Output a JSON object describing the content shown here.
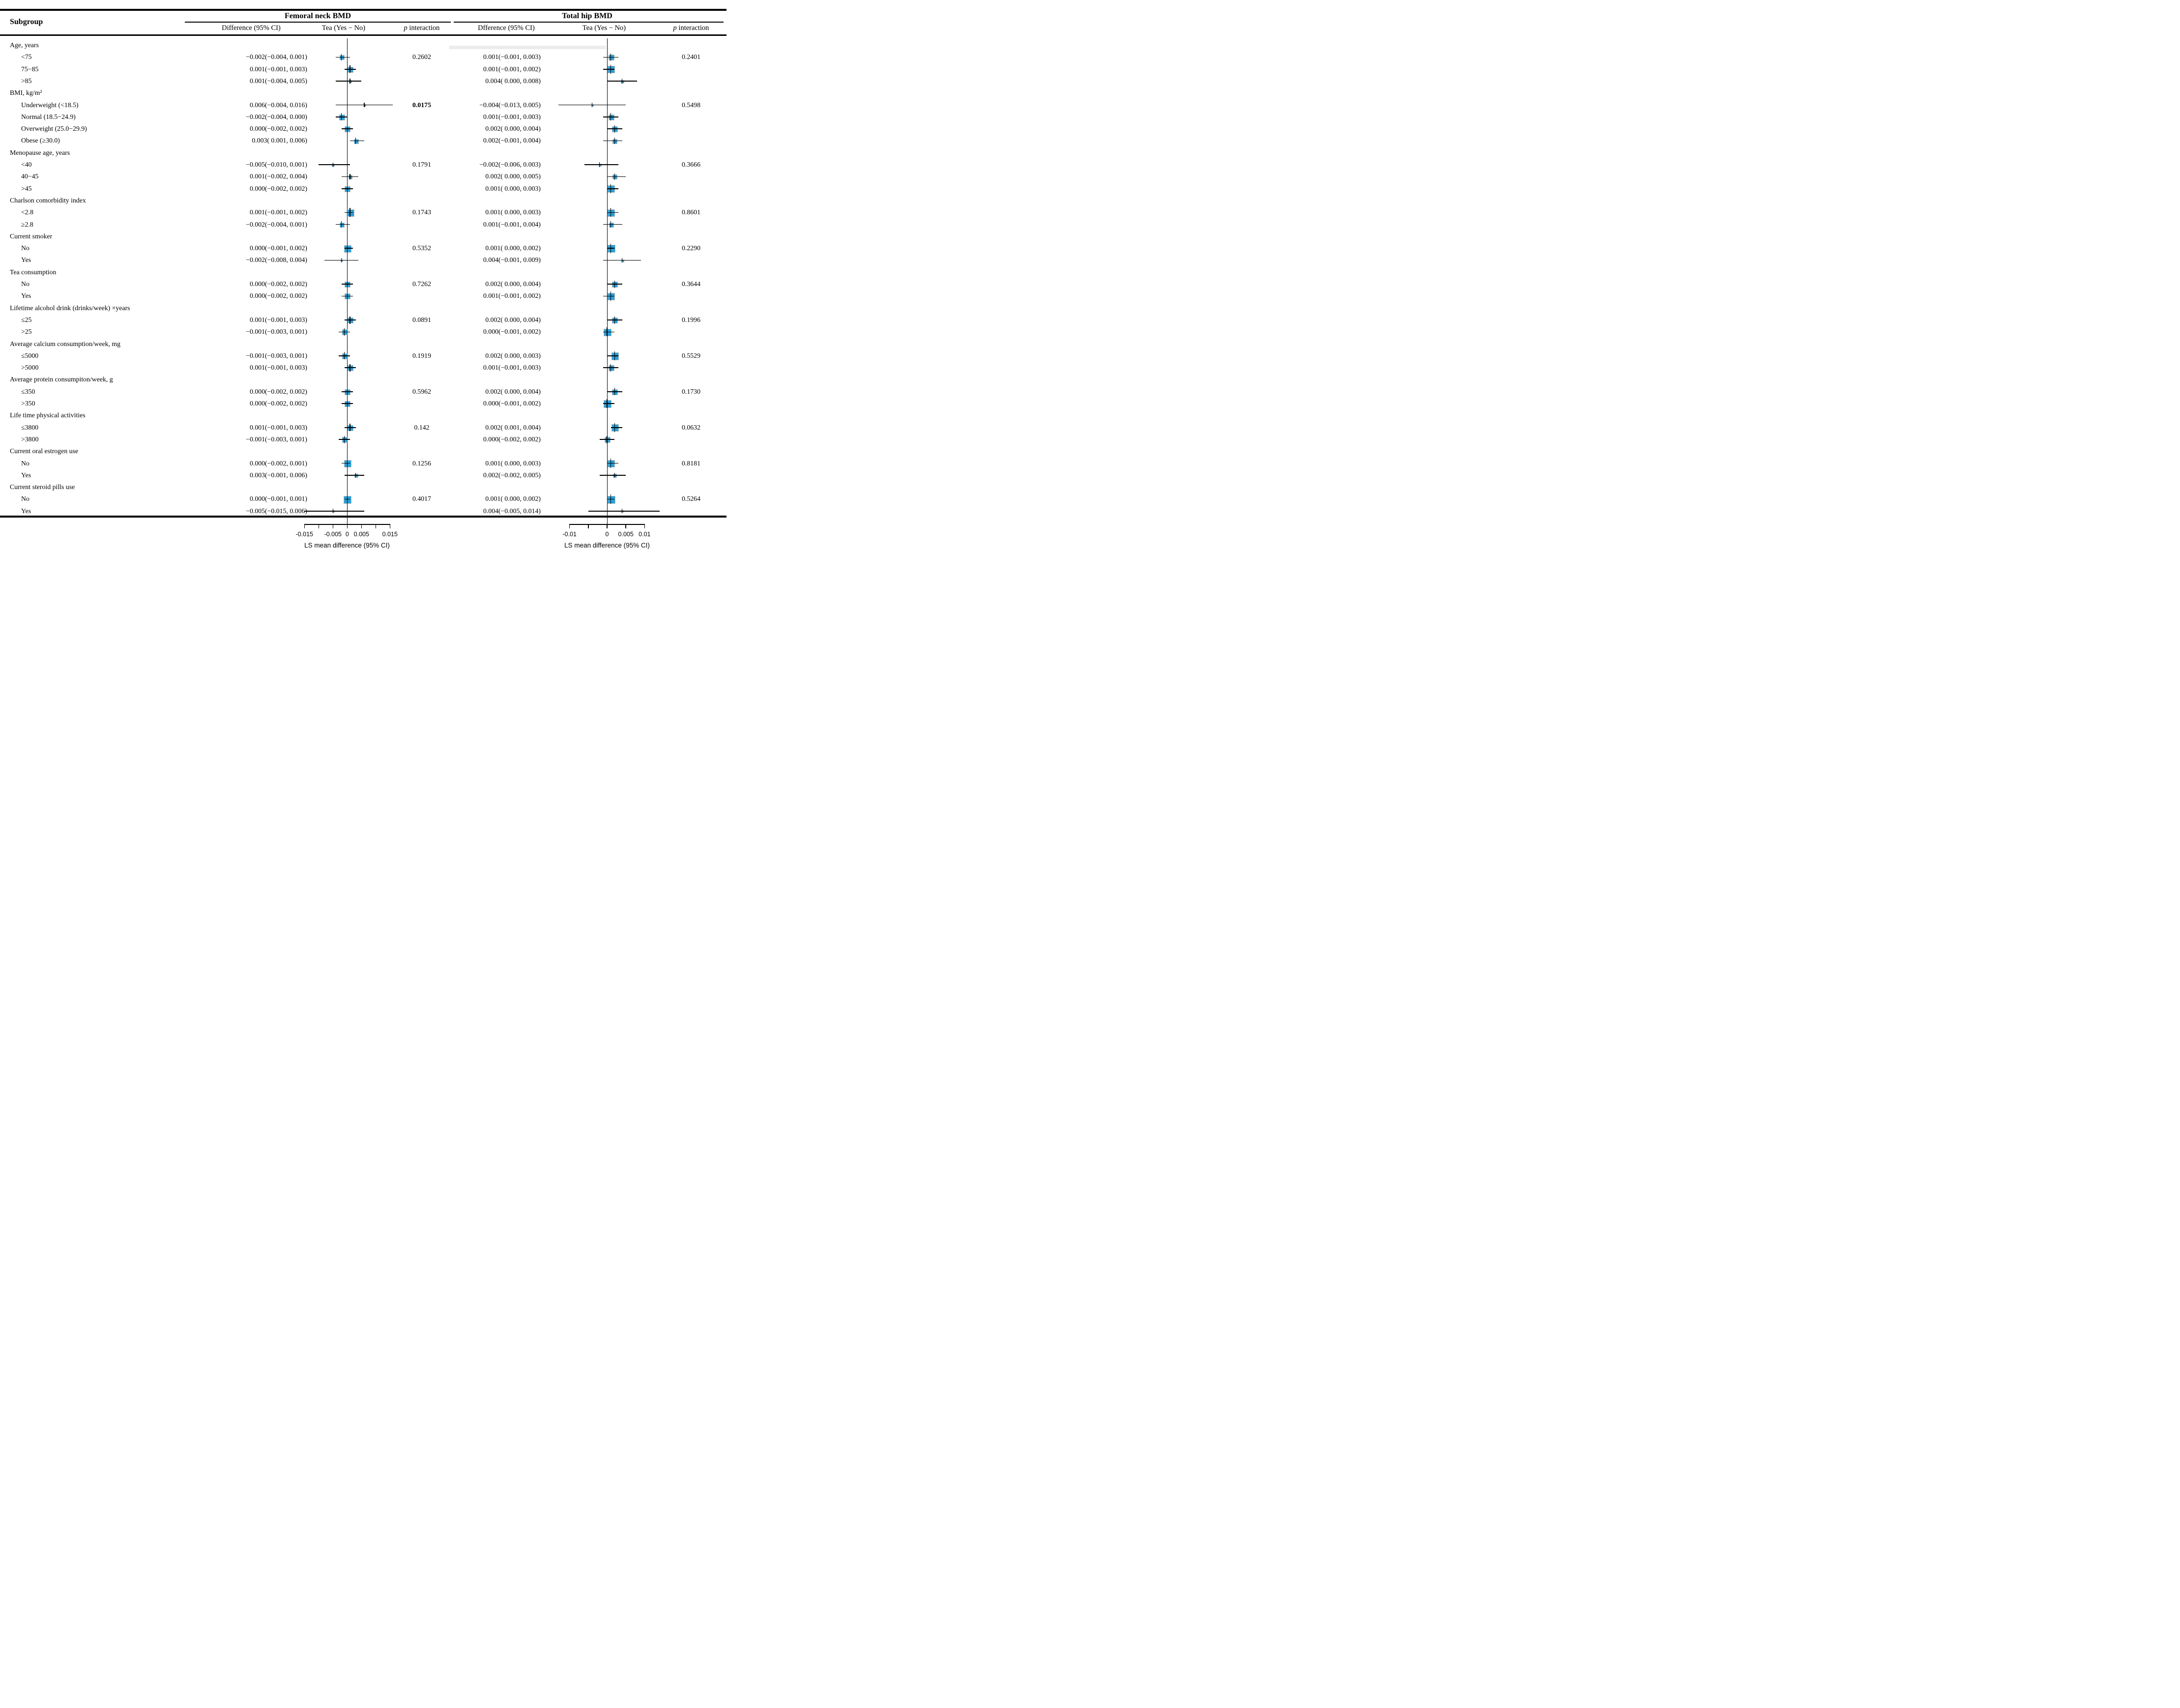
{
  "page": {
    "subgroup_header": "Subgroup"
  },
  "panels": {
    "fn": {
      "title": "Femoral neck BMD",
      "diff_header": "Difference (95% CI)",
      "tea_header": "Tea (Yes − No)",
      "p_header_italic": "p",
      "p_header_rest": " interaction",
      "axis": {
        "tick_labels": [
          "-0.015",
          "-0.005",
          "0",
          "0.005",
          "0.015"
        ],
        "title": "LS mean difference (95% CI)"
      }
    },
    "th": {
      "title": "Total hip BMD",
      "diff_header": "Dfference (95% CI)",
      "tea_header": "Tea (Yes − No)",
      "p_header_italic": "p",
      "p_header_rest": " interaction",
      "axis": {
        "tick_labels": [
          "-0.01",
          "0",
          "0.005",
          "0.01"
        ],
        "title": "LS mean difference (95% CI)"
      }
    }
  },
  "chart_data": {
    "type": "scatter",
    "subtype": "forest-plot",
    "legend_position": "none",
    "grid": false,
    "marker_color": "#2a9fd8",
    "fn_axis": {
      "range": [
        -0.015,
        0.015
      ],
      "tick_step": 0.005,
      "label": "LS mean difference (95% CI)"
    },
    "th_axis": {
      "range": [
        -0.01,
        0.01
      ],
      "tick_step": 0.005,
      "label": "LS mean difference (95% CI)"
    },
    "sections": [
      {
        "label": "Age, years",
        "items": [
          {
            "label": "<75",
            "fn_text": "−0.002(−0.004, 0.001)",
            "fn": [
              -0.002,
              -0.004,
              0.001
            ],
            "fn_p": "0.2602",
            "th_text": "0.001(−0.001, 0.003)",
            "th": [
              0.001,
              -0.001,
              0.003
            ],
            "th_p": "0.2401"
          },
          {
            "label": "75−85",
            "fn_text": "0.001(−0.001, 0.003)",
            "fn": [
              0.001,
              -0.001,
              0.003
            ],
            "th_text": "0.001(−0.001, 0.002)",
            "th": [
              0.001,
              -0.001,
              0.002
            ]
          },
          {
            "label": ">85",
            "fn_text": "0.001(−0.004, 0.005)",
            "fn": [
              0.001,
              -0.004,
              0.005
            ],
            "th_text": "0.004( 0.000, 0.008)",
            "th": [
              0.004,
              0.0,
              0.008
            ]
          }
        ]
      },
      {
        "label": "BMI, kg/m²",
        "items": [
          {
            "label": "Underweight (<18.5)",
            "fn_text": "0.006(−0.004, 0.016)",
            "fn": [
              0.006,
              -0.004,
              0.016
            ],
            "fn_p": "0.0175",
            "fn_p_bold": true,
            "th_text": "−0.004(−0.013, 0.005)",
            "th": [
              -0.004,
              -0.013,
              0.005
            ],
            "th_p": "0.5498"
          },
          {
            "label": "Normal (18.5−24.9)",
            "fn_text": "−0.002(−0.004, 0.000)",
            "fn": [
              -0.002,
              -0.004,
              0.0
            ],
            "th_text": "0.001(−0.001, 0.003)",
            "th": [
              0.001,
              -0.001,
              0.003
            ]
          },
          {
            "label": "Overweight (25.0−29.9)",
            "fn_text": "0.000(−0.002, 0.002)",
            "fn": [
              0.0,
              -0.002,
              0.002
            ],
            "th_text": "0.002( 0.000, 0.004)",
            "th": [
              0.002,
              0.0,
              0.004
            ]
          },
          {
            "label": "Obese (≥30.0)",
            "fn_text": "0.003( 0.001, 0.006)",
            "fn": [
              0.003,
              0.001,
              0.006
            ],
            "th_text": "0.002(−0.001, 0.004)",
            "th": [
              0.002,
              -0.001,
              0.004
            ]
          }
        ]
      },
      {
        "label": "Menopause age, years",
        "items": [
          {
            "label": "<40",
            "fn_text": "−0.005(−0.010, 0.001)",
            "fn": [
              -0.005,
              -0.01,
              0.001
            ],
            "fn_p": "0.1791",
            "th_text": "−0.002(−0.006, 0.003)",
            "th": [
              -0.002,
              -0.006,
              0.003
            ],
            "th_p": "0.3666"
          },
          {
            "label": "40−45",
            "fn_text": "0.001(−0.002, 0.004)",
            "fn": [
              0.001,
              -0.002,
              0.004
            ],
            "th_text": "0.002( 0.000, 0.005)",
            "th": [
              0.002,
              0.0,
              0.005
            ]
          },
          {
            "label": ">45",
            "fn_text": "0.000(−0.002, 0.002)",
            "fn": [
              0.0,
              -0.002,
              0.002
            ],
            "th_text": "0.001( 0.000, 0.003)",
            "th": [
              0.001,
              0.0,
              0.003
            ]
          }
        ]
      },
      {
        "label": "Charlson comorbidity index",
        "items": [
          {
            "label": "<2.8",
            "fn_text": "0.001(−0.001, 0.002)",
            "fn": [
              0.001,
              -0.001,
              0.002
            ],
            "fn_p": "0.1743",
            "th_text": "0.001( 0.000, 0.003)",
            "th": [
              0.001,
              0.0,
              0.003
            ],
            "th_p": "0.8601"
          },
          {
            "label": "≥2.8",
            "fn_text": "−0.002(−0.004, 0.001)",
            "fn": [
              -0.002,
              -0.004,
              0.001
            ],
            "th_text": "0.001(−0.001, 0.004)",
            "th": [
              0.001,
              -0.001,
              0.004
            ]
          }
        ]
      },
      {
        "label": "Current smoker",
        "items": [
          {
            "label": "No",
            "fn_text": "0.000(−0.001, 0.002)",
            "fn": [
              0.0,
              -0.001,
              0.002
            ],
            "fn_p": "0.5352",
            "th_text": "0.001( 0.000, 0.002)",
            "th": [
              0.001,
              0.0,
              0.002
            ],
            "th_p": "0.2290"
          },
          {
            "label": "Yes",
            "fn_text": "−0.002(−0.008, 0.004)",
            "fn": [
              -0.002,
              -0.008,
              0.004
            ],
            "th_text": "0.004(−0.001, 0.009)",
            "th": [
              0.004,
              -0.001,
              0.009
            ]
          }
        ]
      },
      {
        "label": "Tea consumption",
        "items": [
          {
            "label": "No",
            "fn_text": "0.000(−0.002, 0.002)",
            "fn": [
              0.0,
              -0.002,
              0.002
            ],
            "fn_p": "0.7262",
            "th_text": "0.002( 0.000, 0.004)",
            "th": [
              0.002,
              0.0,
              0.004
            ],
            "th_p": "0.3644"
          },
          {
            "label": "Yes",
            "fn_text": "0.000(−0.002, 0.002)",
            "fn": [
              0.0,
              -0.002,
              0.002
            ],
            "th_text": "0.001(−0.001, 0.002)",
            "th": [
              0.001,
              -0.001,
              0.002
            ]
          }
        ]
      },
      {
        "label": "Lifetime alcohol drink (drinks/week) ×years",
        "items": [
          {
            "label": "≤25",
            "fn_text": "0.001(−0.001, 0.003)",
            "fn": [
              0.001,
              -0.001,
              0.003
            ],
            "fn_p": "0.0891",
            "th_text": "0.002( 0.000, 0.004)",
            "th": [
              0.002,
              0.0,
              0.004
            ],
            "th_p": "0.1996"
          },
          {
            "label": ">25",
            "fn_text": "−0.001(−0.003, 0.001)",
            "fn": [
              -0.001,
              -0.003,
              0.001
            ],
            "th_text": "0.000(−0.001, 0.002)",
            "th": [
              0.0,
              -0.001,
              0.002
            ]
          }
        ]
      },
      {
        "label": "Average calcium consumption/week, mg",
        "items": [
          {
            "label": "≤5000",
            "fn_text": "−0.001(−0.003, 0.001)",
            "fn": [
              -0.001,
              -0.003,
              0.001
            ],
            "fn_p": "0.1919",
            "th_text": "0.002( 0.000, 0.003)",
            "th": [
              0.002,
              0.0,
              0.003
            ],
            "th_p": "0.5529"
          },
          {
            "label": ">5000",
            "fn_text": "0.001(−0.001, 0.003)",
            "fn": [
              0.001,
              -0.001,
              0.003
            ],
            "th_text": "0.001(−0.001, 0.003)",
            "th": [
              0.001,
              -0.001,
              0.003
            ]
          }
        ]
      },
      {
        "label": "Average protein consumpiton/week, g",
        "items": [
          {
            "label": "≤350",
            "fn_text": "0.000(−0.002, 0.002)",
            "fn": [
              0.0,
              -0.002,
              0.002
            ],
            "fn_p": "0.5962",
            "th_text": "0.002( 0.000, 0.004)",
            "th": [
              0.002,
              0.0,
              0.004
            ],
            "th_p": "0.1730"
          },
          {
            "label": ">350",
            "fn_text": "0.000(−0.002, 0.002)",
            "fn": [
              0.0,
              -0.002,
              0.002
            ],
            "th_text": "0.000(−0.001, 0.002)",
            "th": [
              0.0,
              -0.001,
              0.002
            ]
          }
        ]
      },
      {
        "label": "Life time physical activities",
        "items": [
          {
            "label": "≤3800",
            "fn_text": "0.001(−0.001, 0.003)",
            "fn": [
              0.001,
              -0.001,
              0.003
            ],
            "fn_p": "0.142",
            "th_text": "0.002( 0.001, 0.004)",
            "th": [
              0.002,
              0.001,
              0.004
            ],
            "th_p": "0.0632"
          },
          {
            "label": ">3800",
            "fn_text": "−0.001(−0.003, 0.001)",
            "fn": [
              -0.001,
              -0.003,
              0.001
            ],
            "th_text": "0.000(−0.002, 0.002)",
            "th": [
              0.0,
              -0.002,
              0.002
            ]
          }
        ]
      },
      {
        "label": "Current oral estrogen use",
        "items": [
          {
            "label": "No",
            "fn_text": "0.000(−0.002, 0.001)",
            "fn": [
              0.0,
              -0.002,
              0.001
            ],
            "fn_p": "0.1256",
            "th_text": "0.001( 0.000, 0.003)",
            "th": [
              0.001,
              0.0,
              0.003
            ],
            "th_p": "0.8181"
          },
          {
            "label": "Yes",
            "fn_text": "0.003(−0.001, 0.006)",
            "fn": [
              0.003,
              -0.001,
              0.006
            ],
            "th_text": "0.002(−0.002, 0.005)",
            "th": [
              0.002,
              -0.002,
              0.005
            ]
          }
        ]
      },
      {
        "label": "Current steroid pills use",
        "items": [
          {
            "label": "No",
            "fn_text": "0.000(−0.001, 0.001)",
            "fn": [
              0.0,
              -0.001,
              0.001
            ],
            "fn_p": "0.4017",
            "th_text": "0.001( 0.000, 0.002)",
            "th": [
              0.001,
              0.0,
              0.002
            ],
            "th_p": "0.5264"
          },
          {
            "label": "Yes",
            "fn_text": "−0.005(−0.015, 0.006)",
            "fn": [
              -0.005,
              -0.015,
              0.006
            ],
            "th_text": "0.004(−0.005, 0.014)",
            "th": [
              0.004,
              -0.005,
              0.014
            ]
          }
        ]
      }
    ]
  }
}
